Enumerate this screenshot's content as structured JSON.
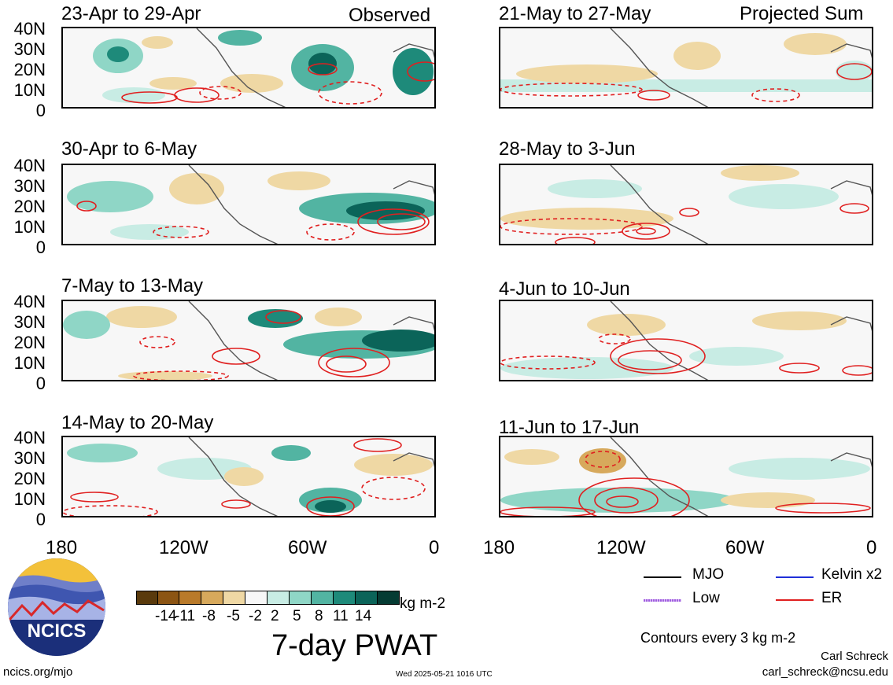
{
  "panels": {
    "left_header": "Observed",
    "right_header": "Projected Sum",
    "observed": [
      "23-Apr to 29-Apr",
      "30-Apr to 6-May",
      "7-May to 13-May",
      "14-May to 20-May"
    ],
    "projected": [
      "21-May to 27-May",
      "28-May to 3-Jun",
      "4-Jun to 10-Jun",
      "11-Jun to 17-Jun"
    ]
  },
  "axes": {
    "y_labels": [
      "40N",
      "30N",
      "20N",
      "10N",
      "0"
    ],
    "x_labels": [
      "180",
      "120W",
      "60W",
      "0"
    ]
  },
  "colorbar": {
    "ticks": [
      "-14",
      "-11",
      "-8",
      "-5",
      "-2",
      "2",
      "5",
      "8",
      "11",
      "14"
    ],
    "colors": [
      "#5a3a0c",
      "#8c5514",
      "#b97a2a",
      "#d7a95c",
      "#efd8a4",
      "#f7f7f7",
      "#c8ece4",
      "#8fd6c6",
      "#52b4a2",
      "#1e8a7a",
      "#0b6459",
      "#053b33"
    ],
    "units": "kg m-2",
    "title": "7-day PWAT"
  },
  "legend": {
    "mjo": "MJO",
    "kelvin": "Kelvin x2",
    "low": "Low",
    "er": "ER",
    "contours_note": "Contours every 3 kg m-2",
    "colors": {
      "mjo": "#000000",
      "kelvin": "#1f2fd8",
      "low": "#a05ce0",
      "er": "#e02020"
    }
  },
  "footer": {
    "site": "ncics.org/mjo",
    "timestamp": "Wed 2025-05-21 1016 UTC",
    "author": "Carl Schreck",
    "email": "carl_schreck@ncsu.edu"
  },
  "logo": {
    "text": "NCICS"
  }
}
